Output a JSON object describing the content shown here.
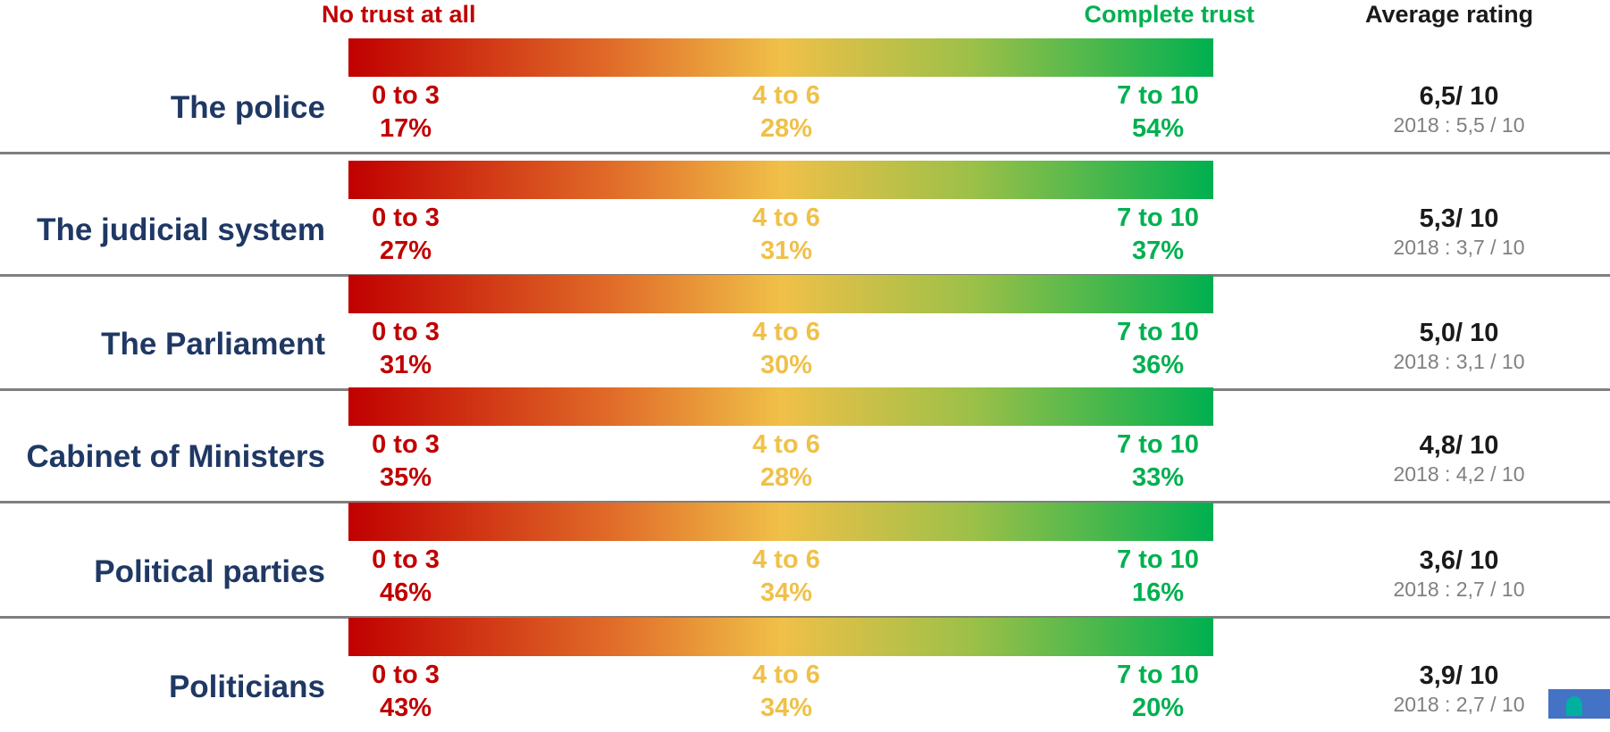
{
  "header": {
    "left": "No trust at all",
    "right": "Complete trust",
    "avg": "Average rating"
  },
  "colors": {
    "low": "#c00000",
    "mid": "#f0c048",
    "high": "#00b050",
    "row_label": "#1f3864",
    "logo": "#4472c4"
  },
  "logo_icon": "brand-logo-icon",
  "rows": [
    {
      "label": "The police",
      "low": {
        "range": "0 to 3",
        "pct": "17%"
      },
      "mid": {
        "range": "4 to 6",
        "pct": "28%"
      },
      "high": {
        "range": "7 to 10",
        "pct": "54%"
      },
      "avg": "6,5/ 10",
      "prev": "2018 : 5,5 / 10"
    },
    {
      "label": "The judicial system",
      "low": {
        "range": "0 to 3",
        "pct": "27%"
      },
      "mid": {
        "range": "4 to 6",
        "pct": "31%"
      },
      "high": {
        "range": "7 to 10",
        "pct": "37%"
      },
      "avg": "5,3/ 10",
      "prev": "2018 : 3,7 / 10"
    },
    {
      "label": "The Parliament",
      "low": {
        "range": "0 to 3",
        "pct": "31%"
      },
      "mid": {
        "range": "4 to 6",
        "pct": "30%"
      },
      "high": {
        "range": "7 to 10",
        "pct": "36%"
      },
      "avg": "5,0/ 10",
      "prev": "2018 : 3,1 / 10"
    },
    {
      "label": "Cabinet of Ministers",
      "low": {
        "range": "0 to 3",
        "pct": "35%"
      },
      "mid": {
        "range": "4 to 6",
        "pct": "28%"
      },
      "high": {
        "range": "7 to 10",
        "pct": "33%"
      },
      "avg": "4,8/ 10",
      "prev": "2018 : 4,2 / 10"
    },
    {
      "label": "Political parties",
      "low": {
        "range": "0 to 3",
        "pct": "46%"
      },
      "mid": {
        "range": "4 to 6",
        "pct": "34%"
      },
      "high": {
        "range": "7 to 10",
        "pct": "16%"
      },
      "avg": "3,6/ 10",
      "prev": "2018 : 2,7 / 10"
    },
    {
      "label": "Politicians",
      "low": {
        "range": "0 to 3",
        "pct": "43%"
      },
      "mid": {
        "range": "4 to 6",
        "pct": "34%"
      },
      "high": {
        "range": "7 to 10",
        "pct": "20%"
      },
      "avg": "3,9/ 10",
      "prev": "2018 : 2,7 / 10"
    }
  ],
  "chart_data": {
    "type": "table",
    "categories": [
      "The police",
      "The judicial system",
      "The Parliament",
      "Cabinet of Ministers",
      "Political parties",
      "Politicians"
    ],
    "series": [
      {
        "name": "0 to 3",
        "values": [
          17,
          27,
          31,
          35,
          46,
          43
        ]
      },
      {
        "name": "4 to 6",
        "values": [
          28,
          31,
          30,
          28,
          34,
          34
        ]
      },
      {
        "name": "7 to 10",
        "values": [
          54,
          37,
          36,
          33,
          16,
          20
        ]
      },
      {
        "name": "Average rating",
        "values": [
          6.5,
          5.3,
          5.0,
          4.8,
          3.6,
          3.9
        ]
      },
      {
        "name": "2018",
        "values": [
          5.5,
          3.7,
          3.1,
          4.2,
          2.7,
          2.7
        ]
      }
    ],
    "scale_labels": [
      "No trust at all",
      "Complete trust"
    ]
  }
}
